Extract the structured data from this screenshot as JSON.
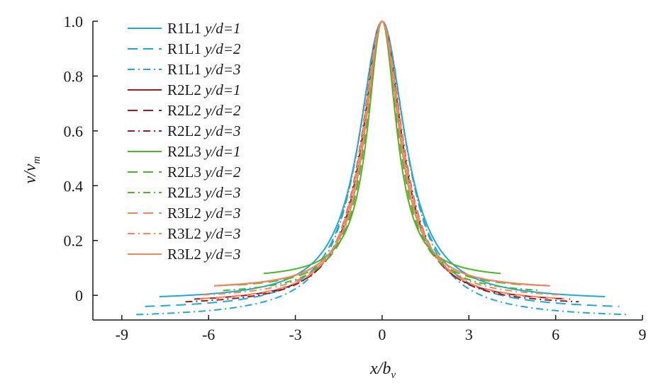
{
  "chart_data": {
    "type": "line",
    "xlabel_main": "x/b",
    "xlabel_sub": "v",
    "ylabel_main": "v/v",
    "ylabel_sub": "m",
    "xlim": [
      -10,
      9
    ],
    "ylim": [
      -0.09,
      1.0
    ],
    "xticks": [
      -9,
      -6,
      -3,
      0,
      3,
      6,
      9
    ],
    "xtick_labels": [
      "-9",
      "-6",
      "-3",
      "0",
      "3",
      "6",
      "9"
    ],
    "yticks": [
      0,
      0.2,
      0.4,
      0.6,
      0.8,
      1.0
    ],
    "ytick_labels": [
      "0",
      "0.2",
      "0.4",
      "0.6",
      "0.8",
      "1.0"
    ],
    "legend_position": "top-left",
    "series": [
      {
        "name": "R1L1",
        "cond": "y/d=1",
        "color": "#1fa9d6",
        "dash": "solid",
        "xmax": 7.7,
        "tail": -0.02,
        "k": 0.95
      },
      {
        "name": "R1L1",
        "cond": "y/d=2",
        "color": "#1fa9d6",
        "dash": "dashed",
        "xmax": 8.2,
        "tail": -0.055,
        "k": 0.97
      },
      {
        "name": "R1L1",
        "cond": "y/d=3",
        "color": "#1fa9d6",
        "dash": "dashdot",
        "xmax": 8.5,
        "tail": -0.085,
        "k": 1.0
      },
      {
        "name": "R2L2",
        "cond": "y/d=1",
        "color": "#a01b21",
        "dash": "solid",
        "xmax": 5.8,
        "tail": 0.02,
        "k": 0.72
      },
      {
        "name": "R2L2",
        "cond": "y/d=2",
        "color": "#a01b21",
        "dash": "dashed",
        "xmax": 6.5,
        "tail": -0.03,
        "k": 0.82
      },
      {
        "name": "R2L2",
        "cond": "y/d=3",
        "color": "#a01b21",
        "dash": "dashdot",
        "xmax": 6.8,
        "tail": -0.04,
        "k": 0.86
      },
      {
        "name": "R2L3",
        "cond": "y/d=1",
        "color": "#4cb52a",
        "dash": "solid",
        "xmax": 4.1,
        "tail": 0.06,
        "k": 0.6
      },
      {
        "name": "R2L3",
        "cond": "y/d=2",
        "color": "#4cb52a",
        "dash": "dashed",
        "xmax": 5.0,
        "tail": 0.02,
        "k": 0.68
      },
      {
        "name": "R2L3",
        "cond": "y/d=3",
        "color": "#4cb52a",
        "dash": "dashdot",
        "xmax": 5.5,
        "tail": 0.0,
        "k": 0.74
      },
      {
        "name": "R3L2",
        "cond": "y/d=3",
        "color": "#f3865a",
        "dash": "dashed",
        "xmax": 6.3,
        "tail": -0.03,
        "k": 0.84
      },
      {
        "name": "R3L2",
        "cond": "y/d=3",
        "color": "#f3865a",
        "dash": "dashdot",
        "xmax": 6.2,
        "tail": -0.015,
        "k": 0.8
      },
      {
        "name": "R3L2",
        "cond": "y/d=3",
        "color": "#f3865a",
        "dash": "solid",
        "xmax": 5.8,
        "tail": 0.02,
        "k": 0.72
      }
    ]
  }
}
